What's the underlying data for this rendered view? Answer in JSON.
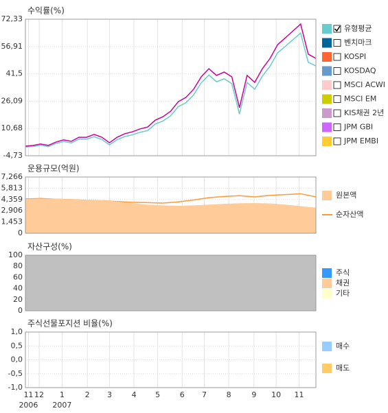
{
  "x_axis": {
    "xlim": [
      0,
      380
    ],
    "xticks": [
      {
        "value": 4,
        "label": "11"
      },
      {
        "value": 18,
        "label": "12"
      },
      {
        "value": 48,
        "label": "1"
      },
      {
        "value": 81,
        "label": "2"
      },
      {
        "value": 110,
        "label": "3"
      },
      {
        "value": 142,
        "label": "4"
      },
      {
        "value": 173,
        "label": "5"
      },
      {
        "value": 205,
        "label": "6"
      },
      {
        "value": 234,
        "label": "7"
      },
      {
        "value": 266,
        "label": "8"
      },
      {
        "value": 299,
        "label": "9"
      },
      {
        "value": 328,
        "label": "10"
      },
      {
        "value": 358,
        "label": "11"
      }
    ],
    "year_labels": [
      {
        "value": 4,
        "label": "2006"
      },
      {
        "value": 48,
        "label": "2007"
      }
    ]
  },
  "chart_data": [
    {
      "type": "line",
      "title": "수익률(%)",
      "ylim": [
        -4.73,
        72.33
      ],
      "yticks": [
        {
          "value": -4.73,
          "label": "-4,73"
        },
        {
          "value": 10.68,
          "label": "10,68"
        },
        {
          "value": 26.09,
          "label": "26,09"
        },
        {
          "value": 41.5,
          "label": "41,5"
        },
        {
          "value": 56.91,
          "label": "56,91"
        },
        {
          "value": 72.33,
          "label": "72,33"
        }
      ],
      "x": [
        0,
        10,
        20,
        30,
        40,
        50,
        60,
        70,
        80,
        90,
        100,
        110,
        120,
        130,
        140,
        150,
        160,
        170,
        180,
        190,
        200,
        210,
        220,
        230,
        240,
        250,
        260,
        270,
        280,
        290,
        300,
        310,
        320,
        330,
        340,
        350,
        360,
        370,
        380
      ],
      "series": [
        {
          "color": "#cc0099",
          "values": [
            0.7,
            1.1,
            1.9,
            1.1,
            3,
            4.2,
            3.4,
            5.7,
            5.7,
            7.3,
            5.7,
            2.6,
            5.7,
            7.7,
            8.8,
            10.4,
            11.5,
            15.4,
            17.3,
            20.4,
            25.8,
            28.2,
            32.8,
            39.8,
            44.4,
            40.6,
            42.5,
            39.8,
            22.4,
            40.6,
            36.7,
            44.4,
            50.2,
            58,
            61.8,
            65.7,
            69.6,
            52.6,
            50.2
          ]
        },
        {
          "name": "유형평균",
          "color": "#66cccc",
          "checked": true,
          "values": [
            0.2,
            0.5,
            1.2,
            0.4,
            2.2,
            3.3,
            2.5,
            4.6,
            4.6,
            6,
            4.4,
            1.4,
            4.3,
            6.1,
            7.1,
            8.5,
            9.5,
            13.2,
            14.9,
            17.8,
            23,
            25.2,
            29.6,
            36.4,
            40.8,
            37,
            38.7,
            36,
            18.8,
            36.6,
            32.8,
            40.2,
            45.8,
            53.4,
            57,
            60.8,
            64.5,
            48,
            46
          ]
        },
        {
          "name": "벤치마크",
          "color": "#006699",
          "checked": false
        },
        {
          "name": "KOSPI",
          "color": "#ff6633",
          "checked": false
        },
        {
          "name": "KOSDAQ",
          "color": "#6699cc",
          "checked": false
        },
        {
          "name": "MSCI ACWI",
          "color": "#ffcccc",
          "checked": false
        },
        {
          "name": "MSCI EM",
          "color": "#cccc00",
          "checked": false
        },
        {
          "name": "KIS채권 2년",
          "color": "#cc99cc",
          "checked": false
        },
        {
          "name": "JPM GBI",
          "color": "#cc66ff",
          "checked": false
        },
        {
          "name": "JPM EMBI",
          "color": "#ffcc33",
          "checked": false
        }
      ]
    },
    {
      "type": "line",
      "title": "운용규모(억원)",
      "ylim": [
        0,
        7266
      ],
      "yticks": [
        0,
        {
          "value": 1453,
          "label": "1,453"
        },
        {
          "value": 2906,
          "label": "2,906"
        },
        {
          "value": 4359,
          "label": "4,359"
        },
        {
          "value": 5813,
          "label": "5,813"
        },
        {
          "value": 7266,
          "label": "7,266"
        }
      ],
      "x": [
        0,
        20,
        40,
        60,
        80,
        100,
        120,
        140,
        160,
        180,
        200,
        220,
        240,
        260,
        280,
        300,
        320,
        340,
        360,
        380
      ],
      "series": [
        {
          "name": "원본액",
          "color": "#ffcc99",
          "area": true,
          "values": [
            4430,
            4480,
            4450,
            4400,
            4300,
            4250,
            4100,
            3900,
            3700,
            3600,
            3550,
            3600,
            3700,
            3800,
            3880,
            3900,
            3850,
            3700,
            3500,
            3300
          ]
        },
        {
          "name": "순자산액",
          "color": "#ff9933",
          "legend_mark": "line",
          "values": [
            4430,
            4500,
            4400,
            4350,
            4250,
            4200,
            4100,
            4000,
            3950,
            3900,
            4050,
            4300,
            4600,
            4750,
            4850,
            4700,
            4900,
            5000,
            5100,
            4700
          ]
        }
      ]
    },
    {
      "type": "line",
      "title": "자산구성(%)",
      "ylim": [
        0,
        100
      ],
      "yticks": [
        0,
        20,
        40,
        60,
        80,
        100
      ],
      "x": [
        0,
        380
      ],
      "series": [
        {
          "color": "#c0c0c0",
          "area": true,
          "values": [
            100,
            100
          ]
        },
        {
          "name": "주식",
          "color": "#3399ff"
        },
        {
          "name": "채권",
          "color": "#ffcc99"
        },
        {
          "name": "기타",
          "color": "#ffffcc"
        }
      ]
    },
    {
      "type": "line",
      "title": "주식선물포지션 비율(%)",
      "ylim": [
        -1,
        1
      ],
      "yticks": [
        {
          "value": -1,
          "label": "-1,0"
        },
        {
          "value": -0.5,
          "label": "-0,5"
        },
        {
          "value": 0,
          "label": "0,0"
        },
        {
          "value": 0.5,
          "label": "0,5"
        },
        {
          "value": 1,
          "label": "1,0"
        }
      ],
      "series": [
        {
          "name": "매수",
          "color": "#99ccff"
        },
        {
          "name": "매도",
          "color": "#ffcc66"
        }
      ]
    }
  ]
}
